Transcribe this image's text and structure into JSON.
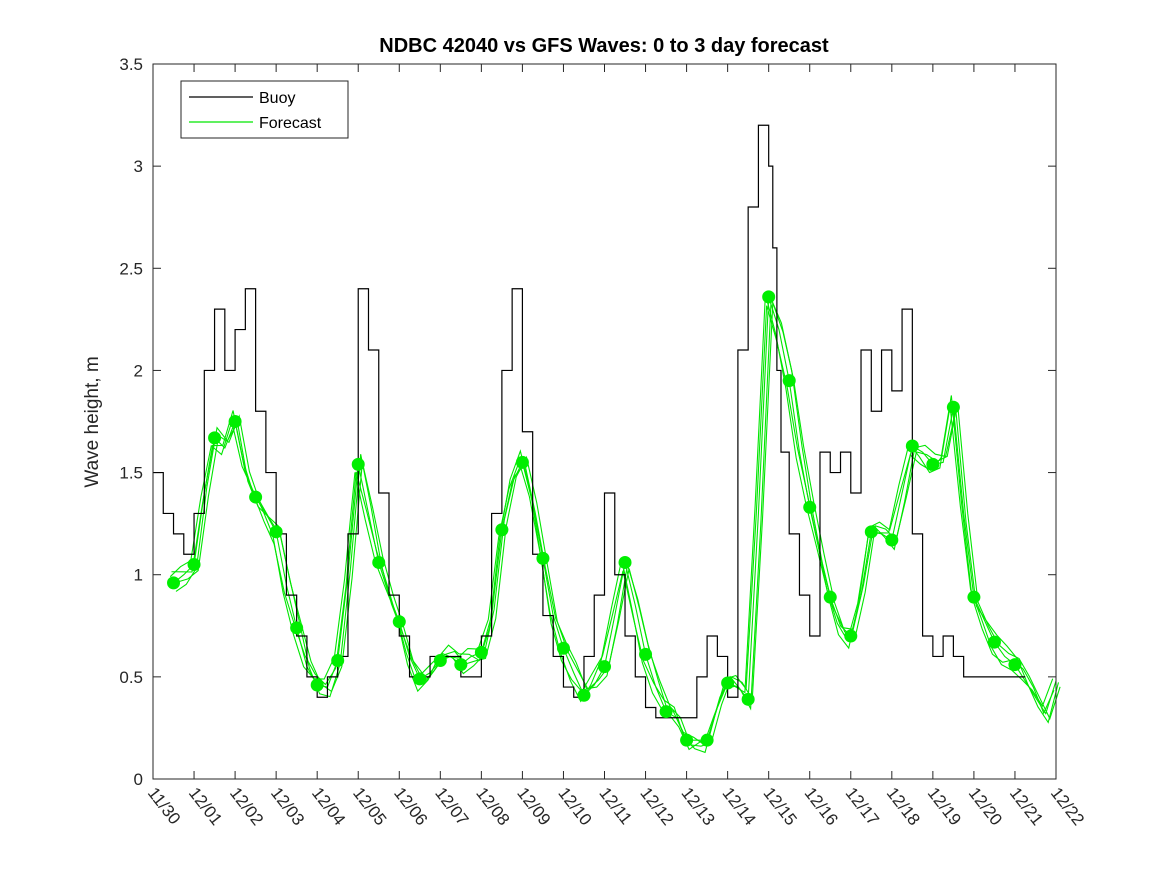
{
  "chart_data": {
    "type": "line",
    "title": "NDBC 42040 vs GFS Waves: 0 to 3 day forecast",
    "xlabel": "",
    "ylabel": "Wave height, m",
    "xlim": [
      0,
      22
    ],
    "ylim": [
      0,
      3.5
    ],
    "x_ticks": [
      0,
      1,
      2,
      3,
      4,
      5,
      6,
      7,
      8,
      9,
      10,
      11,
      12,
      13,
      14,
      15,
      16,
      17,
      18,
      19,
      20,
      21,
      22
    ],
    "x_tick_labels": [
      "11/30",
      "12/01",
      "12/02",
      "12/03",
      "12/04",
      "12/05",
      "12/06",
      "12/07",
      "12/08",
      "12/09",
      "12/10",
      "12/11",
      "12/12",
      "12/13",
      "12/14",
      "12/15",
      "12/16",
      "12/17",
      "12/18",
      "12/19",
      "12/20",
      "12/21",
      "12/22"
    ],
    "y_ticks": [
      0,
      0.5,
      1,
      1.5,
      2,
      2.5,
      3,
      3.5
    ],
    "y_tick_labels": [
      "0",
      "0.5",
      "1",
      "1.5",
      "2",
      "2.5",
      "3",
      "3.5"
    ],
    "legend": {
      "location": "top-left",
      "entries": [
        {
          "label": "Buoy",
          "color": "#000000"
        },
        {
          "label": "Forecast",
          "color": "#00e600"
        }
      ]
    },
    "colors": {
      "buoy": "#000000",
      "forecast": "#00e600",
      "marker": "#00ee00"
    },
    "series": [
      {
        "name": "Buoy",
        "x": [
          0,
          0.25,
          0.5,
          0.75,
          1,
          1.25,
          1.5,
          1.75,
          2,
          2.25,
          2.5,
          2.75,
          3,
          3.25,
          3.5,
          3.75,
          4,
          4.25,
          4.5,
          4.75,
          5,
          5.1,
          5.25,
          5.5,
          5.75,
          6,
          6.25,
          6.5,
          6.75,
          7,
          7.25,
          7.5,
          7.75,
          8,
          8.25,
          8.5,
          8.75,
          9,
          9.25,
          9.5,
          9.75,
          10,
          10.25,
          10.5,
          10.75,
          11,
          11.25,
          11.5,
          11.75,
          12,
          12.25,
          12.5,
          12.75,
          13,
          13.25,
          13.5,
          13.75,
          14,
          14.25,
          14.5,
          14.75,
          15,
          15.1,
          15.2,
          15.3,
          15.5,
          15.75,
          16,
          16.25,
          16.5,
          16.75,
          17,
          17.25,
          17.5,
          17.75,
          18,
          18.25,
          18.5,
          18.75,
          19,
          19.25,
          19.5,
          19.75,
          20,
          20.25,
          20.5,
          20.75,
          21,
          21.25
        ],
        "y": [
          1.5,
          1.3,
          1.2,
          1.1,
          1.3,
          2.0,
          2.3,
          2.0,
          2.2,
          2.4,
          1.8,
          1.5,
          1.2,
          0.9,
          0.7,
          0.5,
          0.4,
          0.5,
          0.6,
          1.2,
          2.4,
          2.4,
          2.1,
          1.4,
          0.9,
          0.7,
          0.5,
          0.5,
          0.6,
          0.6,
          0.6,
          0.5,
          0.5,
          0.7,
          1.3,
          2.0,
          2.4,
          1.7,
          1.1,
          0.8,
          0.6,
          0.45,
          0.4,
          0.6,
          0.9,
          1.4,
          1.0,
          0.7,
          0.5,
          0.35,
          0.3,
          0.3,
          0.3,
          0.3,
          0.5,
          0.7,
          0.6,
          0.4,
          2.1,
          2.8,
          3.2,
          3.0,
          2.6,
          2.0,
          1.6,
          1.2,
          0.9,
          0.7,
          1.6,
          1.5,
          1.6,
          1.4,
          2.1,
          1.8,
          2.1,
          1.9,
          2.3,
          1.2,
          0.7,
          0.6,
          0.7,
          0.6,
          0.5,
          0.5,
          0.5,
          0.5,
          0.5,
          0.5,
          0.5
        ]
      },
      {
        "name": "Forecast",
        "x": [
          0.5,
          0.75,
          1,
          1.25,
          1.5,
          1.75,
          2,
          2.25,
          2.5,
          2.75,
          3,
          3.25,
          3.5,
          3.75,
          4,
          4.25,
          4.5,
          4.75,
          5,
          5.25,
          5.5,
          5.75,
          6,
          6.25,
          6.5,
          6.75,
          7,
          7.25,
          7.5,
          7.75,
          8,
          8.25,
          8.5,
          8.75,
          9,
          9.25,
          9.5,
          9.75,
          10,
          10.25,
          10.5,
          10.75,
          11,
          11.25,
          11.5,
          11.75,
          12,
          12.25,
          12.5,
          12.75,
          13,
          13.25,
          13.5,
          13.75,
          14,
          14.25,
          14.5,
          14.75,
          15,
          15.25,
          15.5,
          15.75,
          16,
          16.25,
          16.5,
          16.75,
          17,
          17.25,
          17.5,
          17.75,
          18,
          18.25,
          18.5,
          18.75,
          19,
          19.25,
          19.5,
          19.75,
          20,
          20.25,
          20.5,
          20.75,
          21,
          21.25,
          21.5,
          21.75,
          22
        ],
        "y": [
          0.96,
          1.0,
          1.05,
          1.4,
          1.67,
          1.62,
          1.75,
          1.5,
          1.38,
          1.3,
          1.21,
          0.95,
          0.74,
          0.55,
          0.46,
          0.45,
          0.58,
          1.0,
          1.54,
          1.3,
          1.06,
          0.9,
          0.77,
          0.6,
          0.49,
          0.52,
          0.58,
          0.6,
          0.56,
          0.6,
          0.62,
          0.8,
          1.22,
          1.45,
          1.55,
          1.35,
          1.08,
          0.8,
          0.64,
          0.52,
          0.41,
          0.46,
          0.55,
          0.8,
          1.06,
          0.85,
          0.61,
          0.45,
          0.33,
          0.3,
          0.19,
          0.19,
          0.19,
          0.35,
          0.47,
          0.45,
          0.39,
          1.3,
          2.36,
          2.2,
          1.95,
          1.6,
          1.33,
          1.1,
          0.89,
          0.75,
          0.7,
          0.9,
          1.21,
          1.2,
          1.17,
          1.4,
          1.63,
          1.6,
          1.54,
          1.55,
          1.82,
          1.3,
          0.89,
          0.78,
          0.67,
          0.6,
          0.56,
          0.48,
          0.4,
          0.32,
          0.48
        ]
      }
    ],
    "forecast_markers": {
      "x": [
        0.5,
        1,
        1.5,
        2,
        2.5,
        3,
        3.5,
        4,
        4.5,
        5,
        5.5,
        6,
        6.5,
        7,
        7.5,
        8,
        8.5,
        9,
        9.5,
        10,
        10.5,
        11,
        11.5,
        12,
        12.5,
        13,
        13.5,
        14,
        14.5,
        15,
        15.5,
        16,
        16.5,
        17,
        17.5,
        18,
        18.5,
        19,
        19.5,
        20,
        20.5,
        21
      ],
      "y": [
        0.96,
        1.05,
        1.67,
        1.75,
        1.38,
        1.21,
        0.74,
        0.46,
        0.58,
        1.54,
        1.06,
        0.77,
        0.49,
        0.58,
        0.56,
        0.62,
        1.22,
        1.55,
        1.08,
        0.64,
        0.41,
        0.55,
        1.06,
        0.61,
        0.33,
        0.19,
        0.19,
        0.47,
        0.39,
        2.36,
        1.95,
        1.33,
        0.89,
        0.7,
        1.21,
        1.17,
        1.63,
        1.54,
        1.82,
        0.89,
        0.67,
        0.56
      ]
    }
  }
}
